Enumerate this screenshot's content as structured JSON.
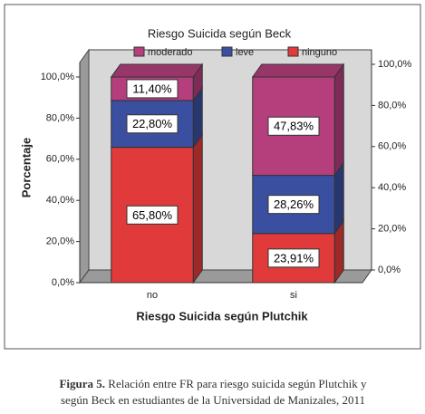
{
  "chart_data": {
    "type": "stacked-bar-3d",
    "title": "Riesgo Suicida según Beck",
    "x_label": "Riesgo Suicida según Plutchik",
    "y_label": "Porcentaje",
    "categories": [
      "no",
      "si"
    ],
    "series": [
      {
        "name": "moderado",
        "color": "#b43f7c",
        "values": [
          11.4,
          47.83
        ],
        "value_labels": [
          "11,40%",
          "47,83%"
        ]
      },
      {
        "name": "leve",
        "color": "#3b4fa0",
        "values": [
          22.8,
          28.26
        ],
        "value_labels": [
          "22,80%",
          "28,26%"
        ]
      },
      {
        "name": "ninguno",
        "color": "#e03a3a",
        "values": [
          65.8,
          23.91
        ],
        "value_labels": [
          "65,80%",
          "23,91%"
        ]
      }
    ],
    "ylim": [
      0,
      100
    ],
    "yticks": [
      {
        "value": 0,
        "label": "0,0%"
      },
      {
        "value": 20,
        "label": "20,0%"
      },
      {
        "value": 40,
        "label": "40,0%"
      },
      {
        "value": 60,
        "label": "60,0%"
      },
      {
        "value": 80,
        "label": "80,0%"
      },
      {
        "value": 100,
        "label": "100,0%"
      }
    ],
    "y2lim": [
      0,
      100
    ],
    "y2ticks": [
      {
        "value": 0,
        "label": "0,0%"
      },
      {
        "value": 20,
        "label": "20,0%"
      },
      {
        "value": 40,
        "label": "40,0%"
      },
      {
        "value": 60,
        "label": "60,0%"
      },
      {
        "value": 80,
        "label": "80,0%"
      },
      {
        "value": 100,
        "label": "100,0%"
      }
    ],
    "legend": "top"
  },
  "caption": {
    "label": "Figura 5.",
    "lines": [
      "Relación entre FR para riesgo suicida según Plutchik y",
      "según Beck en estudiantes de la Universidad de Manizales, 2011"
    ]
  }
}
